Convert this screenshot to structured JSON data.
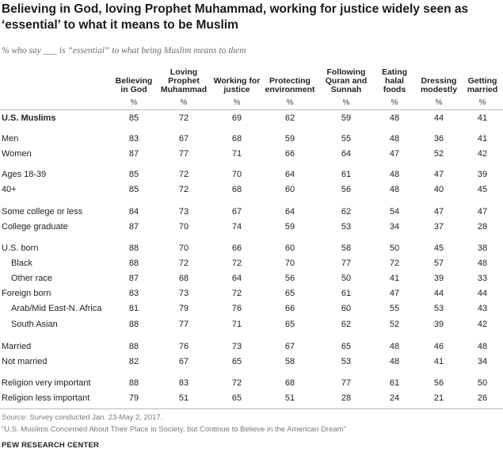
{
  "chart_data": {
    "type": "table",
    "title": "Believing in God, loving Prophet Muhammad, working for justice widely seen as ‘essential’ to what it means to be Muslim",
    "subtitle": "% who say ___ is “essential” to what being Muslim means to them",
    "columns": [
      "Believing\nin God",
      "Loving\nProphet\nMuhammad",
      "Working for\njustice",
      "Protecting\nenvironment",
      "Following\nQuran and\nSunnah",
      "Eating\nhalal\nfoods",
      "Dressing\nmodestly",
      "Getting\nmarried"
    ],
    "unit_label": "%",
    "rows": [
      {
        "label": "U.S. Muslims",
        "values": [
          85,
          72,
          69,
          62,
          59,
          48,
          44,
          41
        ]
      },
      {
        "label": "Men",
        "values": [
          83,
          67,
          68,
          59,
          55,
          48,
          36,
          41
        ]
      },
      {
        "label": "Women",
        "values": [
          87,
          77,
          71,
          66,
          64,
          47,
          52,
          42
        ]
      },
      {
        "label": "Ages 18-39",
        "values": [
          85,
          72,
          70,
          64,
          61,
          48,
          47,
          39
        ]
      },
      {
        "label": "40+",
        "values": [
          85,
          72,
          68,
          60,
          56,
          48,
          40,
          45
        ]
      },
      {
        "label": "Some college or less",
        "values": [
          84,
          73,
          67,
          64,
          62,
          54,
          47,
          47
        ]
      },
      {
        "label": "College graduate",
        "values": [
          87,
          70,
          74,
          59,
          53,
          34,
          37,
          28
        ]
      },
      {
        "label": "U.S. born",
        "values": [
          88,
          70,
          66,
          60,
          58,
          50,
          45,
          38
        ]
      },
      {
        "label": "Black",
        "values": [
          88,
          72,
          72,
          70,
          77,
          72,
          57,
          48
        ]
      },
      {
        "label": "Other race",
        "values": [
          87,
          68,
          64,
          56,
          50,
          41,
          39,
          33
        ]
      },
      {
        "label": "Foreign born",
        "values": [
          83,
          73,
          72,
          65,
          61,
          47,
          44,
          44
        ]
      },
      {
        "label": "Arab/Mid East-N. Africa",
        "values": [
          81,
          79,
          76,
          66,
          60,
          55,
          53,
          43
        ]
      },
      {
        "label": "South Asian",
        "values": [
          88,
          77,
          71,
          65,
          62,
          52,
          39,
          42
        ]
      },
      {
        "label": "Married",
        "values": [
          88,
          76,
          73,
          67,
          65,
          48,
          46,
          48
        ]
      },
      {
        "label": "Not married",
        "values": [
          82,
          67,
          65,
          58,
          53,
          48,
          41,
          34
        ]
      },
      {
        "label": "Religion very important",
        "values": [
          88,
          83,
          72,
          68,
          77,
          61,
          56,
          50
        ]
      },
      {
        "label": "Religion less important",
        "values": [
          79,
          51,
          65,
          51,
          28,
          24,
          21,
          26
        ]
      }
    ],
    "source": "Source: Survey conducted Jan. 23-May 2, 2017.",
    "report": "“U.S. Muslims Concerned About Their Place in Society, but Continue to Believe in the American Dream”",
    "brand": "PEW RESEARCH CENTER"
  }
}
